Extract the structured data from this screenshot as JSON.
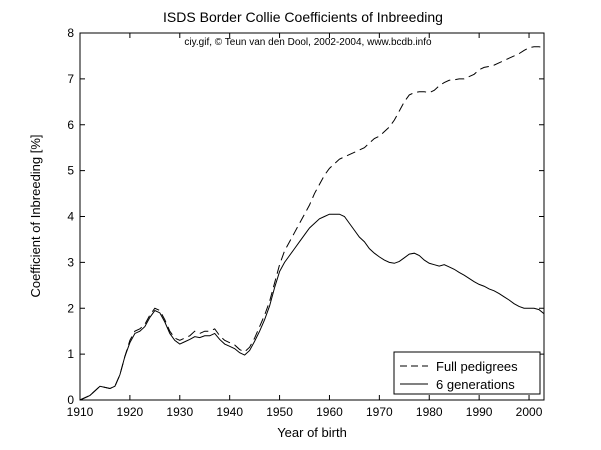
{
  "chart_data": {
    "type": "line",
    "title": "ISDS Border Collie Coefficients of Inbreeding",
    "subtitle": "ciy.gif, © Teun van den Dool, 2002-2004, www.bcdb.info",
    "xlabel": "Year of birth",
    "ylabel": "Coefficient of Inbreeding [%]",
    "xlim": [
      1910,
      2003
    ],
    "ylim": [
      0,
      8
    ],
    "xticks": [
      "1910",
      "1920",
      "1930",
      "1940",
      "1950",
      "1960",
      "1970",
      "1980",
      "1990",
      "2000"
    ],
    "yticks": [
      "0",
      "1",
      "2",
      "3",
      "4",
      "5",
      "6",
      "7",
      "8"
    ],
    "grid": false,
    "legend_position": "bottom-right",
    "series": [
      {
        "name": "Full pedigrees",
        "style": "dashed",
        "color": "#000000",
        "points": [
          [
            1910,
            0.0
          ],
          [
            1912,
            0.1
          ],
          [
            1914,
            0.3
          ],
          [
            1916,
            0.25
          ],
          [
            1917,
            0.3
          ],
          [
            1918,
            0.55
          ],
          [
            1919,
            0.95
          ],
          [
            1920,
            1.3
          ],
          [
            1921,
            1.5
          ],
          [
            1922,
            1.55
          ],
          [
            1923,
            1.65
          ],
          [
            1924,
            1.85
          ],
          [
            1925,
            2.0
          ],
          [
            1926,
            1.95
          ],
          [
            1927,
            1.75
          ],
          [
            1928,
            1.5
          ],
          [
            1929,
            1.35
          ],
          [
            1930,
            1.3
          ],
          [
            1931,
            1.35
          ],
          [
            1932,
            1.4
          ],
          [
            1933,
            1.5
          ],
          [
            1934,
            1.45
          ],
          [
            1935,
            1.5
          ],
          [
            1936,
            1.5
          ],
          [
            1937,
            1.55
          ],
          [
            1938,
            1.4
          ],
          [
            1939,
            1.3
          ],
          [
            1940,
            1.25
          ],
          [
            1941,
            1.2
          ],
          [
            1942,
            1.1
          ],
          [
            1943,
            1.05
          ],
          [
            1944,
            1.15
          ],
          [
            1945,
            1.35
          ],
          [
            1946,
            1.6
          ],
          [
            1947,
            1.85
          ],
          [
            1948,
            2.15
          ],
          [
            1949,
            2.55
          ],
          [
            1950,
            2.95
          ],
          [
            1951,
            3.25
          ],
          [
            1952,
            3.45
          ],
          [
            1953,
            3.65
          ],
          [
            1954,
            3.85
          ],
          [
            1955,
            4.05
          ],
          [
            1956,
            4.25
          ],
          [
            1957,
            4.5
          ],
          [
            1958,
            4.7
          ],
          [
            1959,
            4.9
          ],
          [
            1960,
            5.05
          ],
          [
            1961,
            5.15
          ],
          [
            1962,
            5.25
          ],
          [
            1963,
            5.3
          ],
          [
            1964,
            5.35
          ],
          [
            1965,
            5.4
          ],
          [
            1966,
            5.45
          ],
          [
            1967,
            5.5
          ],
          [
            1968,
            5.6
          ],
          [
            1969,
            5.7
          ],
          [
            1970,
            5.75
          ],
          [
            1971,
            5.85
          ],
          [
            1972,
            5.95
          ],
          [
            1973,
            6.1
          ],
          [
            1974,
            6.3
          ],
          [
            1975,
            6.5
          ],
          [
            1976,
            6.65
          ],
          [
            1977,
            6.7
          ],
          [
            1978,
            6.72
          ],
          [
            1979,
            6.72
          ],
          [
            1980,
            6.7
          ],
          [
            1981,
            6.75
          ],
          [
            1982,
            6.85
          ],
          [
            1983,
            6.92
          ],
          [
            1984,
            6.97
          ],
          [
            1985,
            6.98
          ],
          [
            1986,
            7.0
          ],
          [
            1987,
            7.0
          ],
          [
            1988,
            7.05
          ],
          [
            1989,
            7.1
          ],
          [
            1990,
            7.2
          ],
          [
            1991,
            7.25
          ],
          [
            1992,
            7.27
          ],
          [
            1993,
            7.3
          ],
          [
            1994,
            7.35
          ],
          [
            1995,
            7.4
          ],
          [
            1996,
            7.45
          ],
          [
            1997,
            7.5
          ],
          [
            1998,
            7.55
          ],
          [
            1999,
            7.62
          ],
          [
            2000,
            7.68
          ],
          [
            2001,
            7.7
          ],
          [
            2002,
            7.7
          ],
          [
            2003,
            7.68
          ]
        ]
      },
      {
        "name": "6 generations",
        "style": "solid",
        "color": "#000000",
        "points": [
          [
            1910,
            0.0
          ],
          [
            1912,
            0.1
          ],
          [
            1914,
            0.3
          ],
          [
            1916,
            0.25
          ],
          [
            1917,
            0.3
          ],
          [
            1918,
            0.55
          ],
          [
            1919,
            0.95
          ],
          [
            1920,
            1.25
          ],
          [
            1921,
            1.45
          ],
          [
            1922,
            1.5
          ],
          [
            1923,
            1.6
          ],
          [
            1924,
            1.8
          ],
          [
            1925,
            1.95
          ],
          [
            1926,
            1.9
          ],
          [
            1927,
            1.7
          ],
          [
            1928,
            1.45
          ],
          [
            1929,
            1.3
          ],
          [
            1930,
            1.22
          ],
          [
            1931,
            1.27
          ],
          [
            1932,
            1.32
          ],
          [
            1933,
            1.38
          ],
          [
            1934,
            1.36
          ],
          [
            1935,
            1.4
          ],
          [
            1936,
            1.4
          ],
          [
            1937,
            1.45
          ],
          [
            1938,
            1.32
          ],
          [
            1939,
            1.22
          ],
          [
            1940,
            1.17
          ],
          [
            1941,
            1.12
          ],
          [
            1942,
            1.03
          ],
          [
            1943,
            0.98
          ],
          [
            1944,
            1.08
          ],
          [
            1945,
            1.28
          ],
          [
            1946,
            1.5
          ],
          [
            1947,
            1.75
          ],
          [
            1948,
            2.05
          ],
          [
            1949,
            2.45
          ],
          [
            1950,
            2.8
          ],
          [
            1951,
            3.0
          ],
          [
            1952,
            3.15
          ],
          [
            1953,
            3.3
          ],
          [
            1954,
            3.45
          ],
          [
            1955,
            3.6
          ],
          [
            1956,
            3.75
          ],
          [
            1957,
            3.85
          ],
          [
            1958,
            3.95
          ],
          [
            1959,
            4.0
          ],
          [
            1960,
            4.05
          ],
          [
            1961,
            4.05
          ],
          [
            1962,
            4.05
          ],
          [
            1963,
            4.0
          ],
          [
            1964,
            3.85
          ],
          [
            1965,
            3.7
          ],
          [
            1966,
            3.55
          ],
          [
            1967,
            3.45
          ],
          [
            1968,
            3.3
          ],
          [
            1969,
            3.2
          ],
          [
            1970,
            3.12
          ],
          [
            1971,
            3.05
          ],
          [
            1972,
            3.0
          ],
          [
            1973,
            2.98
          ],
          [
            1974,
            3.02
          ],
          [
            1975,
            3.1
          ],
          [
            1976,
            3.18
          ],
          [
            1977,
            3.2
          ],
          [
            1978,
            3.15
          ],
          [
            1979,
            3.05
          ],
          [
            1980,
            2.98
          ],
          [
            1981,
            2.95
          ],
          [
            1982,
            2.92
          ],
          [
            1983,
            2.95
          ],
          [
            1984,
            2.9
          ],
          [
            1985,
            2.85
          ],
          [
            1986,
            2.78
          ],
          [
            1987,
            2.72
          ],
          [
            1988,
            2.65
          ],
          [
            1989,
            2.58
          ],
          [
            1990,
            2.52
          ],
          [
            1991,
            2.48
          ],
          [
            1992,
            2.42
          ],
          [
            1993,
            2.38
          ],
          [
            1994,
            2.32
          ],
          [
            1995,
            2.25
          ],
          [
            1996,
            2.18
          ],
          [
            1997,
            2.1
          ],
          [
            1998,
            2.04
          ],
          [
            1999,
            2.0
          ],
          [
            2000,
            2.0
          ],
          [
            2001,
            2.0
          ],
          [
            2002,
            1.97
          ],
          [
            2003,
            1.88
          ]
        ]
      }
    ]
  }
}
